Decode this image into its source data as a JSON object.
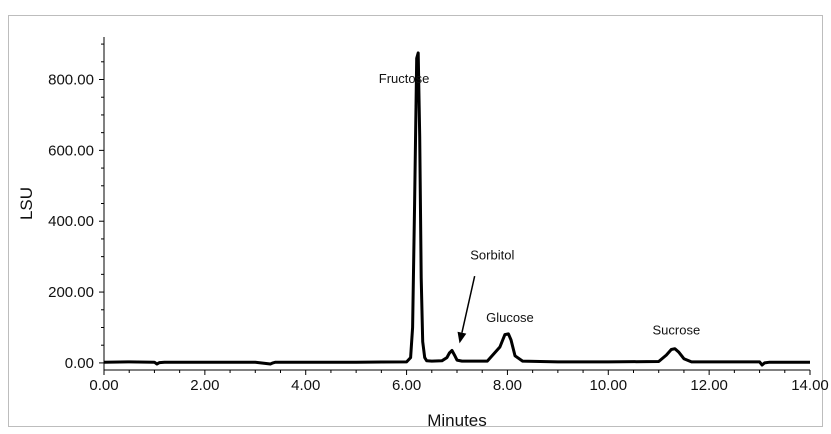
{
  "chart_data": {
    "type": "line",
    "title": "",
    "xlabel": "Minutes",
    "ylabel": "LSU",
    "xlim": [
      0,
      14
    ],
    "ylim": [
      -20,
      920
    ],
    "x_ticks": [
      "0.00",
      "2.00",
      "4.00",
      "6.00",
      "8.00",
      "10.00",
      "12.00",
      "14.00"
    ],
    "y_ticks": [
      "0.00",
      "200.00",
      "400.00",
      "600.00",
      "800.00"
    ],
    "x_tick_values": [
      0,
      2,
      4,
      6,
      8,
      10,
      12,
      14
    ],
    "y_tick_values": [
      0,
      200,
      400,
      600,
      800
    ],
    "grid": false,
    "line_color": "#000000",
    "series": [
      {
        "x": [
          0,
          0.5,
          1.0,
          1.05,
          1.1,
          1.2,
          2.0,
          3.0,
          3.3,
          3.35,
          3.4,
          4.0,
          5.0,
          6.0,
          6.08,
          6.12,
          6.16,
          6.2,
          6.23,
          6.26,
          6.29,
          6.32,
          6.36,
          6.4,
          6.5,
          6.7,
          6.8,
          6.85,
          6.9,
          6.95,
          7.0,
          7.1,
          7.6,
          7.85,
          7.95,
          8.02,
          8.07,
          8.15,
          8.3,
          9.0,
          10.0,
          11.0,
          11.15,
          11.25,
          11.32,
          11.4,
          11.5,
          11.65,
          12.0,
          13.0,
          13.05,
          13.1,
          13.2,
          14.0
        ],
        "y": [
          2,
          3,
          2,
          -3,
          1,
          2,
          2,
          2,
          -3,
          0,
          2,
          2,
          2,
          3,
          15,
          100,
          450,
          860,
          875,
          640,
          240,
          60,
          15,
          6,
          5,
          6,
          15,
          28,
          35,
          22,
          8,
          5,
          5,
          45,
          80,
          82,
          65,
          20,
          5,
          3,
          3,
          4,
          22,
          38,
          40,
          30,
          12,
          3,
          3,
          3,
          -6,
          0,
          2,
          2
        ]
      }
    ],
    "annotations": [
      {
        "text": "Fructose",
        "x": 5.95,
        "y": 790
      },
      {
        "text": "Sorbitol",
        "x": 7.7,
        "y": 292
      },
      {
        "text": "Glucose",
        "x": 8.05,
        "y": 115
      },
      {
        "text": "Sucrose",
        "x": 11.35,
        "y": 80
      }
    ],
    "arrow": {
      "from": [
        7.35,
        245
      ],
      "to": [
        7.05,
        55
      ]
    }
  }
}
